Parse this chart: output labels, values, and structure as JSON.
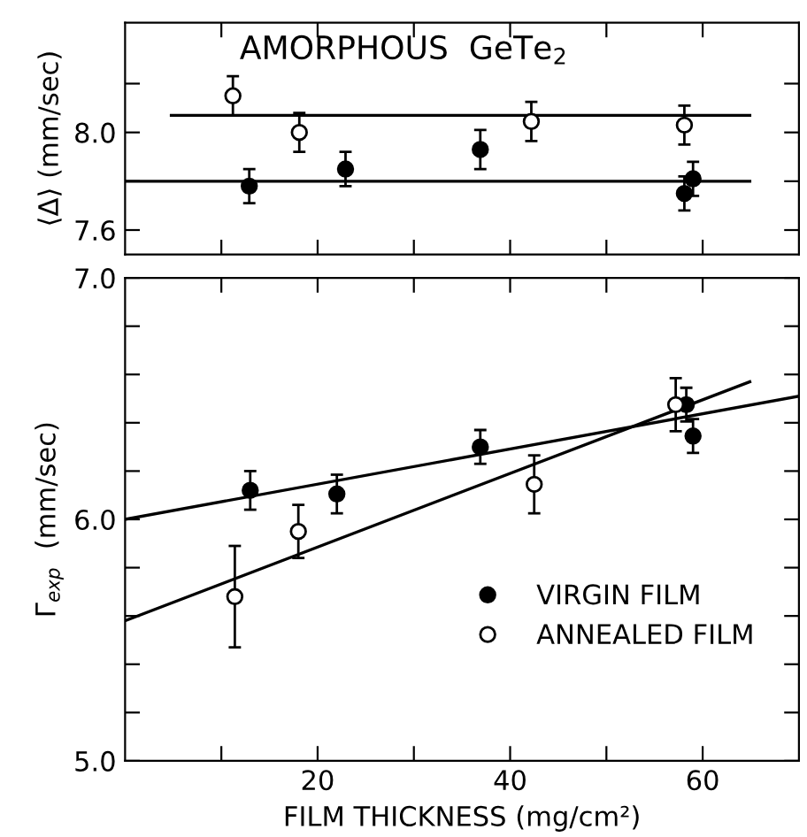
{
  "chart_data": [
    {
      "type": "scatter",
      "ylabel": "⟨Δ⟩ (mm/sec)",
      "annotations": [
        "AMORPHOUS  GeTe$_{2}$"
      ],
      "xlim": [
        0,
        70
      ],
      "xticks": [
        {
          "value": 10,
          "label": null
        },
        {
          "value": 20,
          "label": null
        },
        {
          "value": 30,
          "label": null
        },
        {
          "value": 40,
          "label": null
        },
        {
          "value": 50,
          "label": null
        },
        {
          "value": 60,
          "label": null
        }
      ],
      "ylim": [
        7.5,
        8.45
      ],
      "yticks": [
        7.6,
        {
          "value": 7.8,
          "label": null
        },
        {
          "value": 8.0,
          "label": "8.0"
        },
        {
          "value": 8.2,
          "label": null
        }
      ],
      "tick_labels": "y",
      "grid": false,
      "legend": false,
      "series": [
        {
          "color": "#000000",
          "marker": "circle",
          "x": [
            12.9,
            22.9,
            36.9,
            58.1,
            59.0
          ],
          "values": [
            7.78,
            7.85,
            7.93,
            7.75,
            7.81
          ],
          "errors": [
            0.07,
            0.07,
            0.08,
            0.07,
            0.07
          ]
        },
        {
          "color": "#ffffff",
          "marker": "circle",
          "x": [
            11.2,
            18.1,
            42.2,
            58.1
          ],
          "values": [
            8.15,
            8.0,
            8.045,
            8.03
          ],
          "errors": [
            0.08,
            0.08,
            0.08,
            0.08
          ]
        },
        {
          "type": "line",
          "color": "#000000",
          "marker": "none",
          "x": [
            0,
            64.9
          ],
          "values": [
            7.8,
            7.8
          ]
        },
        {
          "type": "line",
          "color": "#000000",
          "marker": "none",
          "x": [
            4.8,
            64.9
          ],
          "values": [
            8.07,
            8.07
          ]
        }
      ]
    },
    {
      "type": "scatter",
      "xlabel": "FILM THICKNESS (mg/cm²)",
      "ylabel": "Γ$_{exp}$  (mm/sec)",
      "xlim": [
        0,
        70
      ],
      "xticks": [
        {
          "value": 10,
          "label": null
        },
        20,
        {
          "value": 30,
          "label": null
        },
        40,
        {
          "value": 50,
          "label": null
        },
        60
      ],
      "ylim": [
        5.0,
        7.0
      ],
      "yticks": [
        {
          "value": 5.0,
          "label": "5.0"
        },
        {
          "value": 5.2,
          "label": null
        },
        {
          "value": 5.4,
          "label": null
        },
        {
          "value": 5.6,
          "label": null
        },
        {
          "value": 5.8,
          "label": null
        },
        {
          "value": 6.0,
          "label": "6.0"
        },
        {
          "value": 6.2,
          "label": null
        },
        {
          "value": 6.4,
          "label": null
        },
        {
          "value": 6.6,
          "label": null
        },
        {
          "value": 6.8,
          "label": null
        },
        {
          "value": 7.0,
          "label": "7.0"
        }
      ],
      "grid": false,
      "legend": "bottom right",
      "series": [
        {
          "name": "VIRGIN FILM",
          "color": "#000000",
          "marker": "circle",
          "x": [
            13.0,
            22.0,
            36.9,
            58.3,
            59.0
          ],
          "values": [
            6.12,
            6.105,
            6.3,
            6.475,
            6.345
          ],
          "errors": [
            0.08,
            0.08,
            0.07,
            0.07,
            0.07
          ]
        },
        {
          "name": "ANNEALED FILM",
          "color": "#ffffff",
          "marker": "circle",
          "x": [
            11.4,
            18.0,
            42.5,
            57.2
          ],
          "values": [
            5.68,
            5.95,
            6.145,
            6.475
          ],
          "errors": [
            0.21,
            0.11,
            0.12,
            0.11
          ]
        },
        {
          "type": "line",
          "color": "#000000",
          "marker": "none",
          "x": [
            0,
            70
          ],
          "values": [
            6.0,
            6.51
          ]
        },
        {
          "type": "line",
          "color": "#000000",
          "marker": "none",
          "x": [
            0,
            64.9
          ],
          "values": [
            5.58,
            6.57
          ]
        }
      ]
    }
  ]
}
